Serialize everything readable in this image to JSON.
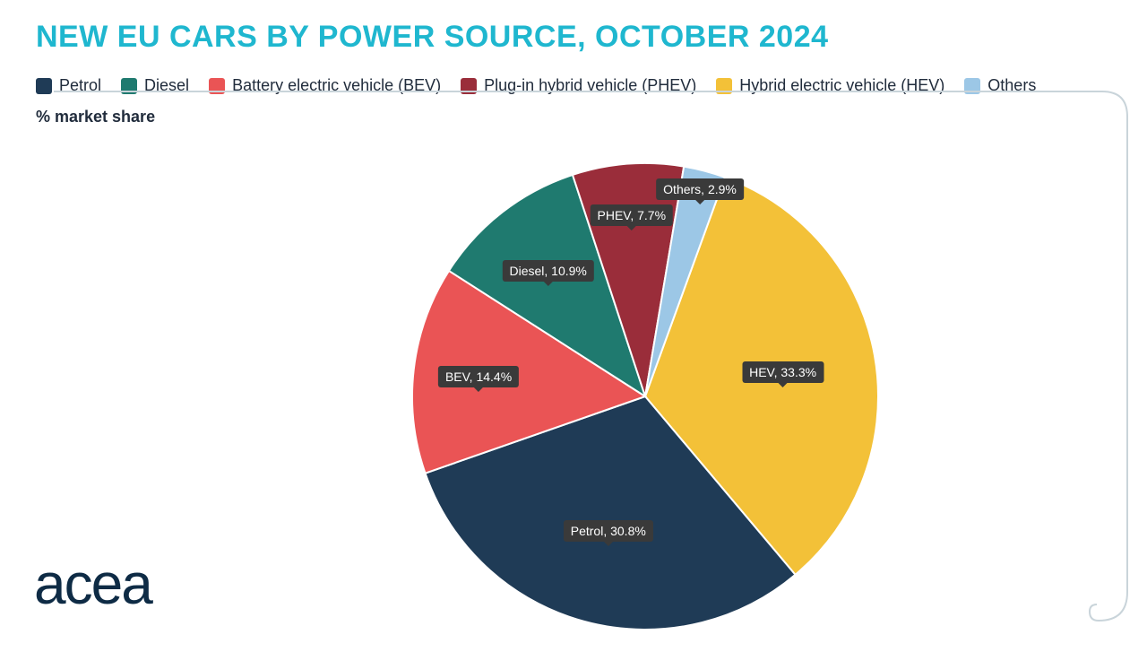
{
  "title": {
    "text": "NEW EU CARS BY POWER SOURCE, OCTOBER 2024",
    "color": "#1fb7cf",
    "fontsize": 34
  },
  "subtitle": "% market share",
  "legend": {
    "fontsize": 18,
    "text_color": "#212c3c",
    "items": [
      {
        "label": "Petrol",
        "color": "#1f3b56"
      },
      {
        "label": "Diesel",
        "color": "#1f7a6f"
      },
      {
        "label": "Battery electric vehicle (BEV)",
        "color": "#ea5455"
      },
      {
        "label": "Plug-in hybrid vehicle (PHEV)",
        "color": "#9a2d3a"
      },
      {
        "label": "Hybrid electric vehicle (HEV)",
        "color": "#f3c138"
      },
      {
        "label": "Others",
        "color": "#9cc7e6"
      }
    ]
  },
  "chart": {
    "type": "pie",
    "background_color": "#ffffff",
    "radius": 260,
    "stroke": "#ffffff",
    "stroke_width": 2,
    "start_angle_deg": 20,
    "direction": "clockwise",
    "label_bg": "#3a3a3a",
    "label_color": "#ffffff",
    "label_fontsize": 14,
    "slices": [
      {
        "key": "HEV",
        "label": "HEV, 33.3%",
        "value": 33.3,
        "color": "#f3c138",
        "label_r": 0.6
      },
      {
        "key": "Petrol",
        "label": "Petrol, 30.8%",
        "value": 30.8,
        "color": "#1f3b56",
        "label_r": 0.6
      },
      {
        "key": "BEV",
        "label": "BEV, 14.4%",
        "value": 14.4,
        "color": "#ea5455",
        "label_r": 0.72
      },
      {
        "key": "Diesel",
        "label": "Diesel, 10.9%",
        "value": 10.9,
        "color": "#1f7a6f",
        "label_r": 0.68
      },
      {
        "key": "PHEV",
        "label": "PHEV, 7.7%",
        "value": 7.7,
        "color": "#9a2d3a",
        "label_r": 0.78
      },
      {
        "key": "Others",
        "label": "Others, 2.9%",
        "value": 2.9,
        "color": "#9cc7e6",
        "label_r": 0.92
      }
    ]
  },
  "logo": {
    "text": "acea",
    "color": "#0e2b45",
    "dot_color": "#1fb7cf"
  },
  "decor": {
    "corner_color": "#c9d4da",
    "corner_width": 2
  }
}
